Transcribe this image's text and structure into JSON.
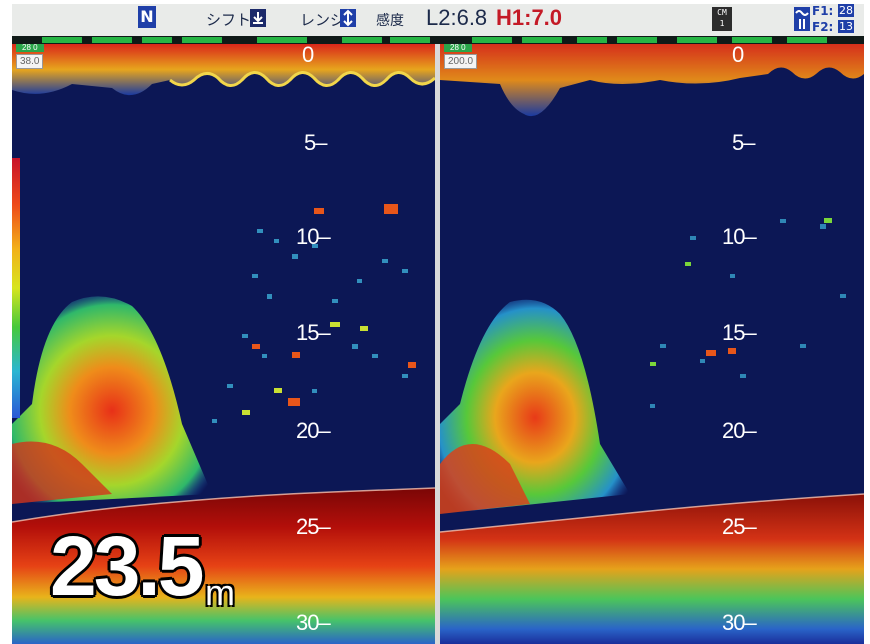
{
  "topbar": {
    "mode_icon": "N",
    "shift_label": "シフト:",
    "shift_icon": "down-arrow-icon",
    "range_label": "レンジ:",
    "range_icon": "up-down-arrow-icon",
    "gain_label": "感度",
    "gain_l2": "L2:6.8",
    "gain_h1": "H1:7.0",
    "cm_line1": "CM",
    "cm_line2": "1",
    "f1_label": "F1:",
    "f1_value": "28",
    "f2_label": "F2:",
    "f2_value": "13"
  },
  "left_panel": {
    "tag_green": "28 0",
    "tag_value": "38.0",
    "depth_scale": [
      "0",
      "5",
      "10",
      "15",
      "20",
      "25",
      "30"
    ],
    "depth_readout": "23.5",
    "depth_unit": "m"
  },
  "right_panel": {
    "tag_green": "28 0",
    "tag_value": "200.0",
    "depth_scale": [
      "0",
      "5",
      "10",
      "15",
      "20",
      "25",
      "30"
    ]
  },
  "colors": {
    "background": "#0a1550",
    "deep_background": "#0f1a5e",
    "bottom_echo": "#8a0a0a",
    "accent_red": "#c8122a",
    "scale_green": "#27b545",
    "topbar": "#e9ebe9"
  }
}
